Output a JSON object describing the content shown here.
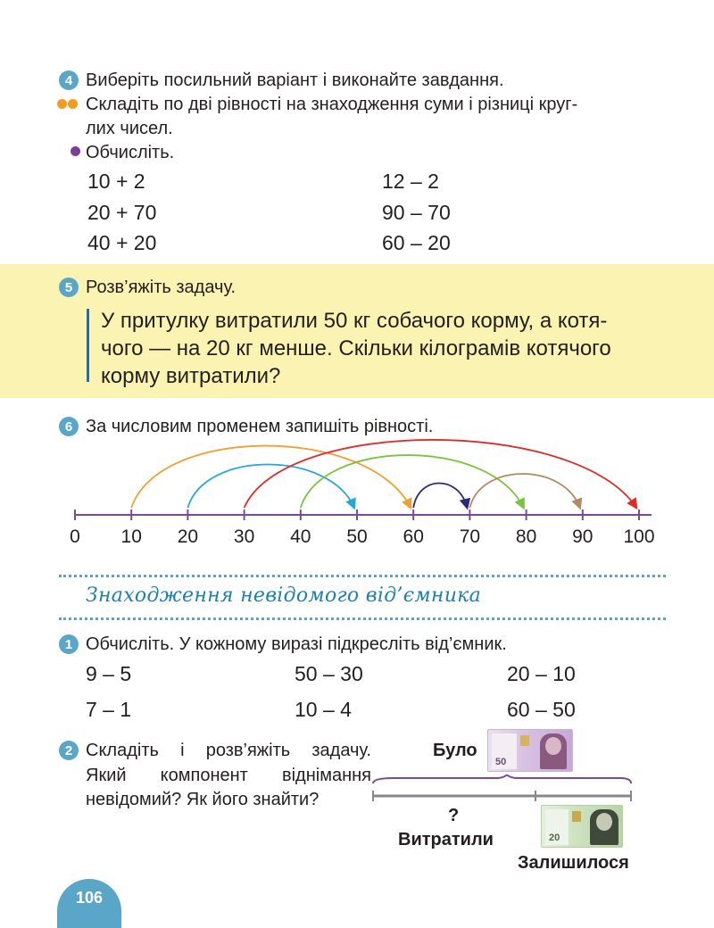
{
  "task4": {
    "number": "4",
    "title": "Виберіть посильний варіант і виконайте завдання.",
    "option1_line1": "Складіть по дві рівності на знаходження суми і різниці круг-",
    "option1_line2": "лих чисел.",
    "option2": "Обчисліть.",
    "expressions": [
      [
        "10 + 2",
        "12 – 2"
      ],
      [
        "20 + 70",
        "90 – 70"
      ],
      [
        "40 + 20",
        "60 – 20"
      ]
    ]
  },
  "task5": {
    "number": "5",
    "title": "Розв’яжіть задачу.",
    "line1": "У притулку витратили 50 кг собачого корму, а котя-",
    "line2": "чого — на 20 кг менше. Скільки кілограмів котячого",
    "line3": "корму витратили?"
  },
  "task6": {
    "number": "6",
    "title": "За числовим променем запишіть рівності.",
    "ticks": [
      "0",
      "10",
      "20",
      "30",
      "40",
      "50",
      "60",
      "70",
      "80",
      "90",
      "100"
    ],
    "arcs": [
      {
        "from": 10,
        "to": 60,
        "color": "#f0a030"
      },
      {
        "from": 20,
        "to": 50,
        "color": "#2aa6d6"
      },
      {
        "from": 30,
        "to": 100,
        "color": "#e02b2b"
      },
      {
        "from": 40,
        "to": 80,
        "color": "#7cc242"
      },
      {
        "from": 60,
        "to": 70,
        "color": "#2b2a7a"
      },
      {
        "from": 70,
        "to": 90,
        "color": "#b08a63"
      }
    ]
  },
  "section": {
    "title": "Знаходження невідомого від’ємника"
  },
  "task1": {
    "number": "1",
    "title": "Обчисліть. У кожному виразі підкресліть від’ємник.",
    "expressions": [
      [
        "9 – 5",
        "50 – 30",
        "20 – 10"
      ],
      [
        "7 – 1",
        "10 – 4",
        "60 – 50"
      ]
    ]
  },
  "task2": {
    "number": "2",
    "line1": "Складіть і розв’яжіть задачу.",
    "line2": "Який компонент віднімання",
    "line3": "невідомий? Як його знайти?",
    "label_was": "Було",
    "label_question": "?",
    "label_spent": "Витратили",
    "label_left": "Залишилося",
    "note_was_value": "50",
    "note_left_value": "20"
  },
  "page_number": "106",
  "colors": {
    "accent_blue": "#5aa6c9",
    "yellow_band": "#fbf3b1",
    "orange_dot": "#f39b1f",
    "purple_dot": "#7b3f98",
    "axis_purple": "#7a4a98"
  }
}
